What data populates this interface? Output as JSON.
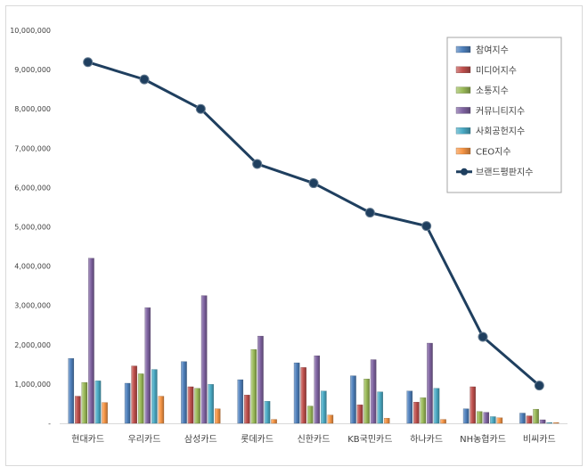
{
  "chart_data": {
    "type": "bar",
    "title": "",
    "xlabel": "",
    "ylabel": "",
    "ylim": [
      0,
      10000000
    ],
    "y_ticks": [
      "-",
      "1,000,000",
      "2,000,000",
      "3,000,000",
      "4,000,000",
      "5,000,000",
      "6,000,000",
      "7,000,000",
      "8,000,000",
      "9,000,000",
      "10,000,000"
    ],
    "categories": [
      "현대카드",
      "우리카드",
      "삼성카드",
      "롯데카드",
      "신한카드",
      "KB국민카드",
      "하나카드",
      "NH농협카드",
      "비씨카드"
    ],
    "series": [
      {
        "name": "참여지수",
        "color": "#4f81bd",
        "values": [
          1650000,
          1020000,
          1570000,
          1110000,
          1540000,
          1210000,
          820000,
          370000,
          260000
        ]
      },
      {
        "name": "미디어지수",
        "color": "#c0504d",
        "values": [
          690000,
          1460000,
          930000,
          720000,
          1420000,
          470000,
          540000,
          930000,
          190000
        ]
      },
      {
        "name": "소통지수",
        "color": "#9bbb59",
        "values": [
          1040000,
          1260000,
          890000,
          1880000,
          440000,
          1130000,
          650000,
          300000,
          360000
        ]
      },
      {
        "name": "커뮤니티지수",
        "color": "#8064a2",
        "values": [
          4200000,
          2940000,
          3250000,
          2220000,
          1720000,
          1620000,
          2040000,
          280000,
          90000
        ]
      },
      {
        "name": "사회공헌지수",
        "color": "#4bacc6",
        "values": [
          1080000,
          1370000,
          990000,
          560000,
          820000,
          800000,
          890000,
          170000,
          20000
        ]
      },
      {
        "name": "CEO지수",
        "color": "#f79646",
        "values": [
          530000,
          690000,
          370000,
          100000,
          210000,
          130000,
          100000,
          140000,
          20000
        ]
      }
    ],
    "line_series": {
      "name": "브랜드평판지수",
      "color": "#1f3f5f",
      "values": [
        9190000,
        8750000,
        8000000,
        6600000,
        6110000,
        5360000,
        5020000,
        2200000,
        960000
      ]
    },
    "legend_position": "top-right",
    "grid": false
  }
}
